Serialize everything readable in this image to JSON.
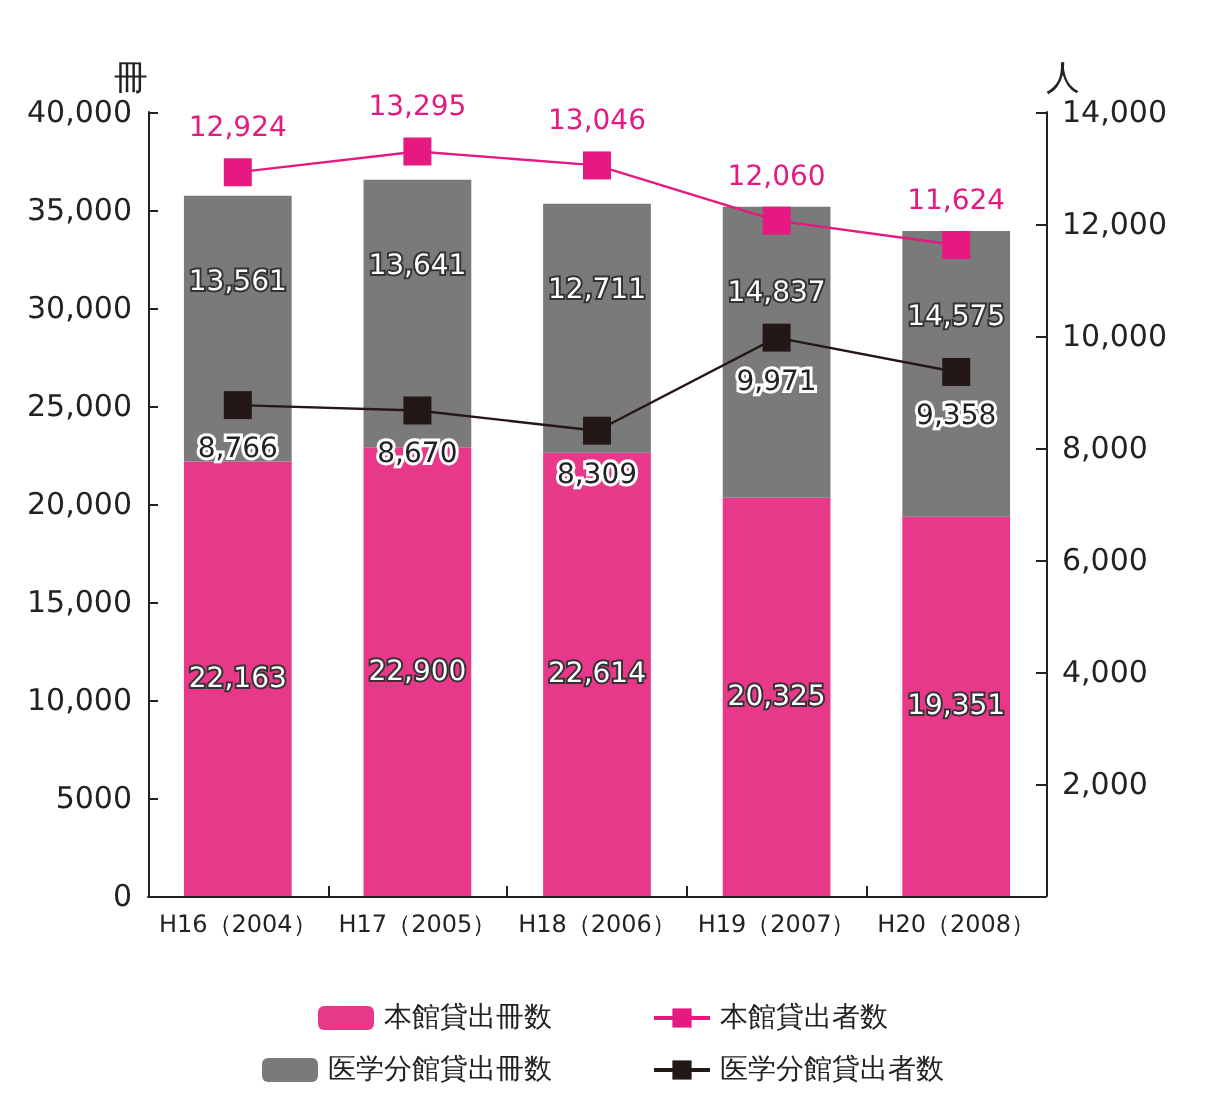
{
  "chart_data": {
    "type": "bar",
    "ylabel": "冊",
    "y2label": "人",
    "categories": [
      "H16（2004）",
      "H17（2005）",
      "H18（2006）",
      "H19（2007）",
      "H20（2008）"
    ],
    "stacked": true,
    "legend": "bottom",
    "grid": false,
    "marker": "square",
    "line_style": "solid",
    "series": [
      {
        "name": "本館貸出冊数",
        "color": "#e8388a",
        "values": [
          22163,
          22900,
          22614,
          20325,
          19351
        ],
        "value_labels": [
          "22,163",
          "22,900",
          "22,614",
          "20,325",
          "19,351"
        ]
      },
      {
        "name": "医学分館貸出冊数",
        "color": "#7a7a7a",
        "values": [
          13561,
          13641,
          12711,
          14837,
          14575
        ],
        "value_labels": [
          "13,561",
          "13,641",
          "12,711",
          "14,837",
          "14,575"
        ]
      },
      {
        "name": "本館貸出者数",
        "type": "line",
        "axis": "y2",
        "color": "#e5197f",
        "values": [
          12924,
          13295,
          13046,
          12060,
          11624
        ],
        "value_labels": [
          "12,924",
          "13,295",
          "13,046",
          "12,060",
          "11,624"
        ]
      },
      {
        "name": "医学分館貸出者数",
        "type": "line",
        "axis": "y2",
        "color": "#231815",
        "values": [
          8766,
          8670,
          8309,
          9971,
          9358
        ],
        "value_labels": [
          "8,766",
          "8,670",
          "8,309",
          "9,971",
          "9,358"
        ]
      }
    ],
    "ylim": [
      0,
      40000
    ],
    "yticks": [
      0,
      {
        "value": 5000,
        "label": "5000"
      },
      {
        "value": 10000,
        "label": "10,000"
      },
      {
        "value": 15000,
        "label": "15,000"
      },
      {
        "value": 20000,
        "label": "20,000"
      },
      {
        "value": 25000,
        "label": "25,000"
      },
      {
        "value": 30000,
        "label": "30,000"
      },
      {
        "value": 35000,
        "label": "35,000"
      },
      {
        "value": 40000,
        "label": "40,000"
      }
    ],
    "y2lim": [
      0,
      14000
    ],
    "y2ticks": [
      {
        "value": 0,
        "label": null
      },
      {
        "value": 2000,
        "label": "2,000"
      },
      {
        "value": 4000,
        "label": "4,000"
      },
      {
        "value": 6000,
        "label": "6,000"
      },
      {
        "value": 8000,
        "label": "8,000"
      },
      {
        "value": 10000,
        "label": "10,000"
      },
      {
        "value": 12000,
        "label": "12,000"
      },
      {
        "value": 14000,
        "label": "14,000"
      }
    ]
  }
}
